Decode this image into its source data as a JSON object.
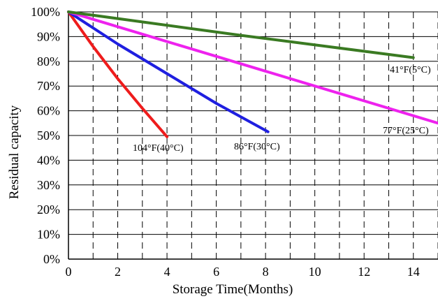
{
  "chart_data": {
    "type": "line",
    "title": "",
    "xlabel": "Storage Time(Months)",
    "ylabel": "Residual capacity",
    "xlim": [
      0,
      15
    ],
    "ylim": [
      0,
      100
    ],
    "x_ticks": [
      0,
      2,
      4,
      6,
      8,
      10,
      12,
      14
    ],
    "x_tick_labels": [
      "0",
      "2",
      "4",
      "6",
      "8",
      "10",
      "12",
      "14"
    ],
    "y_ticks": [
      0,
      10,
      20,
      30,
      40,
      50,
      60,
      70,
      80,
      90,
      100
    ],
    "y_tick_labels": [
      "0%",
      "10%",
      "20%",
      "30%",
      "40%",
      "50%",
      "60%",
      "70%",
      "80%",
      "90%",
      "100%"
    ],
    "grid": {
      "horizontal": "solid",
      "vertical": "dashed",
      "vertical_every": 1
    },
    "series": [
      {
        "name": "104°F(40°C)",
        "color": "#ee1c1c",
        "x": [
          0,
          1,
          2,
          3,
          4
        ],
        "y": [
          100,
          86,
          73,
          61,
          49.5
        ]
      },
      {
        "name": "86°F(30°C)",
        "color": "#1f1fe0",
        "x": [
          0,
          2,
          4,
          6,
          8.1
        ],
        "y": [
          100,
          87,
          75,
          63,
          51.5
        ]
      },
      {
        "name": "77°F(25°C)",
        "color": "#ee22ee",
        "x": [
          0,
          5,
          10,
          15
        ],
        "y": [
          100,
          85,
          70,
          55
        ]
      },
      {
        "name": "41°F(5°C)",
        "color": "#3a7a22",
        "x": [
          0,
          7,
          14
        ],
        "y": [
          100,
          90.5,
          81.5
        ]
      }
    ]
  }
}
